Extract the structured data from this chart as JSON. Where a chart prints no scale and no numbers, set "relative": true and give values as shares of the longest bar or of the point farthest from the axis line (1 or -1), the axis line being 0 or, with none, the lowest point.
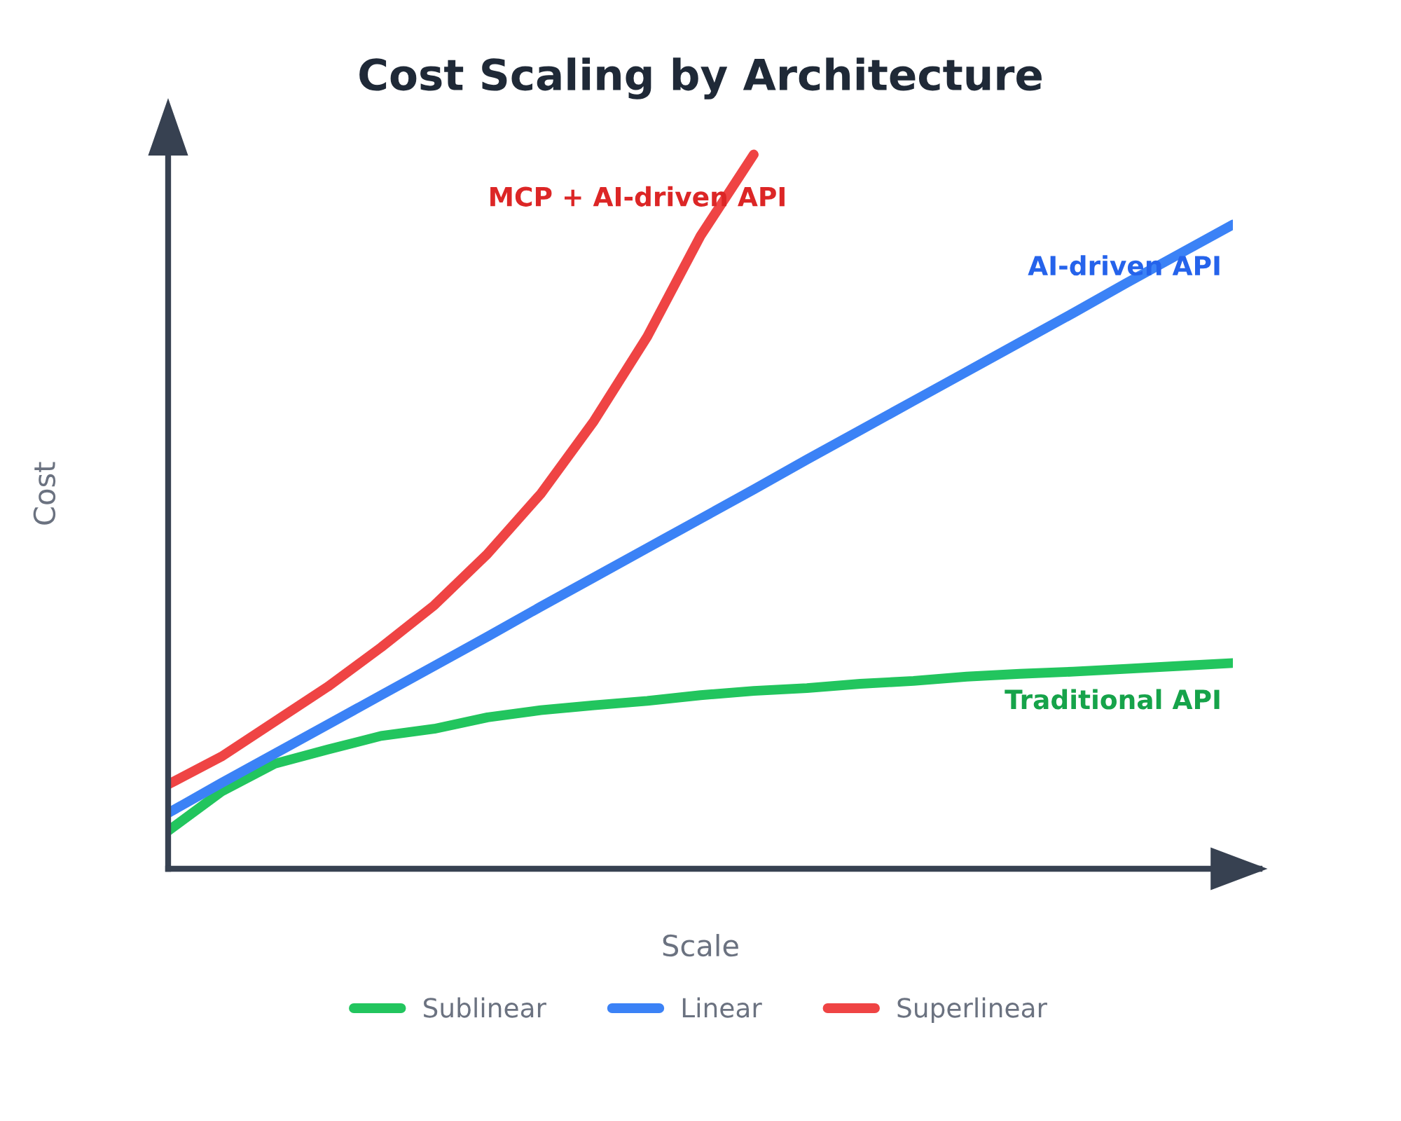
{
  "chart_data": {
    "type": "line",
    "title": "Cost Scaling by Architecture",
    "xlabel": "Scale",
    "ylabel": "Cost",
    "relative": true,
    "legend": "bottom",
    "categories": [
      null,
      null,
      null,
      null,
      null,
      null,
      null,
      null,
      null,
      null,
      null,
      null,
      null,
      null,
      null,
      null,
      null,
      null,
      null,
      null,
      null
    ],
    "series": [
      {
        "name": "Sublinear",
        "color": "#22c55e",
        "values": [
          0.053,
          0.108,
          0.147,
          0.167,
          0.186,
          0.196,
          0.212,
          0.222,
          0.229,
          0.235,
          0.243,
          0.249,
          0.253,
          0.259,
          0.263,
          0.269,
          0.273,
          0.276,
          0.28,
          0.284,
          0.288
        ]
      },
      {
        "name": "Linear",
        "color": "#3b82f6",
        "values": [
          0.078,
          0.12,
          0.161,
          0.202,
          0.243,
          0.284,
          0.325,
          0.367,
          0.408,
          0.449,
          0.49,
          0.531,
          0.573,
          0.614,
          0.655,
          0.696,
          0.737,
          0.778,
          0.82,
          0.861,
          0.902
        ]
      },
      {
        "name": "Superlinear",
        "color": "#ef4444",
        "values": [
          0.118,
          0.157,
          0.206,
          0.255,
          0.31,
          0.369,
          0.441,
          0.525,
          0.627,
          0.745,
          0.886,
          1.0,
          null,
          null,
          null,
          null,
          null,
          null,
          null,
          null,
          null
        ]
      }
    ],
    "annotations": [
      "MCP + AI-driven API",
      "AI-driven API",
      "Traditional API"
    ]
  }
}
